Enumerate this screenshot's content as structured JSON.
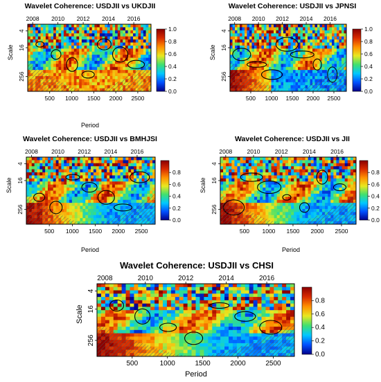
{
  "chart_data": [
    {
      "type": "heatmap",
      "title": "Wavelet Coherence: USDJII vs UKDJII",
      "xlabel": "Period",
      "ylabel": "Scale",
      "x_ticks": [
        "500",
        "1000",
        "1500",
        "2000",
        "2500"
      ],
      "top_ticks": [
        "2008",
        "2010",
        "2012",
        "2014",
        "2016"
      ],
      "y_ticks": [
        "4",
        "16",
        "256"
      ],
      "colorbar_ticks": [
        "0.0",
        "0.2",
        "0.4",
        "0.6",
        "0.8",
        "1.0"
      ],
      "xlim": [
        1,
        2800
      ],
      "colorbar_range": [
        0,
        1
      ],
      "color_scale": [
        "#00008b",
        "#0050ff",
        "#00c8ff",
        "#40e070",
        "#e8e820",
        "#ff9000",
        "#d82a00",
        "#8b0000"
      ]
    },
    {
      "type": "heatmap",
      "title": "Wavelet Coherence: USDJII vs JPNSI",
      "xlabel": "",
      "ylabel": "Scale",
      "x_ticks": [
        "500",
        "1000",
        "1500",
        "2000",
        "2500"
      ],
      "top_ticks": [
        "2008",
        "2010",
        "2012",
        "2014",
        "2016"
      ],
      "y_ticks": [
        "4",
        "16",
        "256"
      ],
      "colorbar_ticks": [
        "0.0",
        "0.2",
        "0.4",
        "0.6",
        "0.8",
        "1.0"
      ],
      "xlim": [
        1,
        2800
      ],
      "colorbar_range": [
        0,
        1
      ]
    },
    {
      "type": "heatmap",
      "title": "Wavelet Coherence: USDJII vs BMHJSI",
      "xlabel": "Period",
      "ylabel": "Scale",
      "x_ticks": [
        "500",
        "1000",
        "1500",
        "2000",
        "2500"
      ],
      "top_ticks": [
        "2008",
        "2010",
        "2012",
        "2014",
        "2016"
      ],
      "y_ticks": [
        "4",
        "16",
        "256"
      ],
      "colorbar_ticks": [
        "0.0",
        "0.2",
        "0.4",
        "0.6",
        "0.8"
      ],
      "xlim": [
        1,
        2800
      ],
      "colorbar_range": [
        0,
        1
      ]
    },
    {
      "type": "heatmap",
      "title": "Wavelet Coherence: USDJII vs JII",
      "xlabel": "Period",
      "ylabel": "Scale",
      "x_ticks": [
        "500",
        "1000",
        "1500",
        "2000",
        "2500"
      ],
      "top_ticks": [
        "2008",
        "2010",
        "2012",
        "2014",
        "2016"
      ],
      "y_ticks": [
        "4",
        "16",
        "256"
      ],
      "colorbar_ticks": [
        "0.0",
        "0.2",
        "0.4",
        "0.6",
        "0.8"
      ],
      "xlim": [
        1,
        2800
      ],
      "colorbar_range": [
        0,
        1
      ]
    },
    {
      "type": "heatmap",
      "title": "Wavelet Coherence: USDJII vs CHSI",
      "xlabel": "Period",
      "ylabel": "Scale",
      "x_ticks": [
        "500",
        "1000",
        "1500",
        "2000",
        "2500"
      ],
      "top_ticks": [
        "2008",
        "2010",
        "2012",
        "2014",
        "2016"
      ],
      "y_ticks": [
        "4",
        "16",
        "256"
      ],
      "colorbar_ticks": [
        "0.0",
        "0.2",
        "0.4",
        "0.6",
        "0.8"
      ],
      "xlim": [
        1,
        2800
      ],
      "colorbar_range": [
        0,
        1
      ]
    }
  ]
}
